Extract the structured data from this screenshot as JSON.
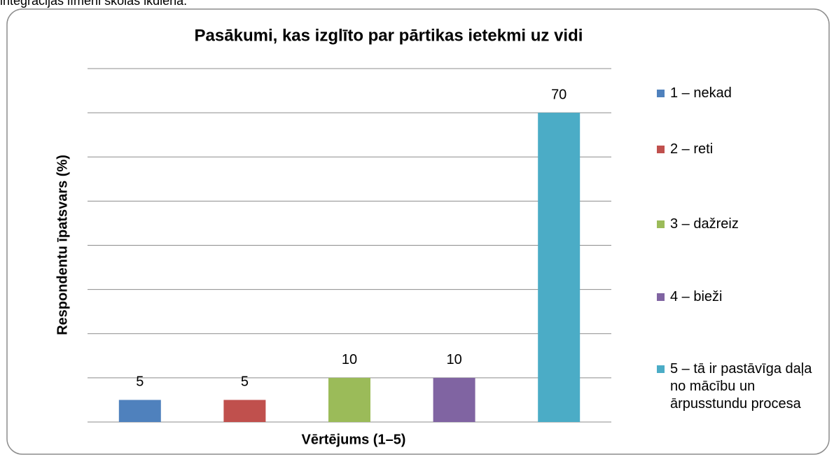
{
  "page_text": "integrācijas līmeni skolas ikdienā.",
  "chart_data": {
    "type": "bar",
    "title": "Pasākumi, kas izglīto par pārtikas ietekmi uz vidi",
    "xlabel": "Vērtējums (1–5)",
    "ylabel": "Respondentu īpatsvars (%)",
    "series": [
      {
        "name": "1 – nekad",
        "color": "#4f81bd",
        "values": [
          5
        ]
      },
      {
        "name": "2 – reti",
        "color": "#c0504d",
        "values": [
          5
        ]
      },
      {
        "name": "3 – dažreiz",
        "color": "#9bbb59",
        "values": [
          10
        ]
      },
      {
        "name": "4 – bieži",
        "color": "#8064a2",
        "values": [
          10
        ]
      },
      {
        "name": "5 – tā ir pastāvīga daļa no mācību un ārpusstundu procesa",
        "color": "#4bacc6",
        "values": [
          70
        ]
      }
    ],
    "ylim": [
      0,
      80
    ],
    "yticks": [
      0,
      10,
      20,
      30,
      40,
      50,
      60,
      70,
      80
    ],
    "grid": true,
    "legend": "right"
  }
}
